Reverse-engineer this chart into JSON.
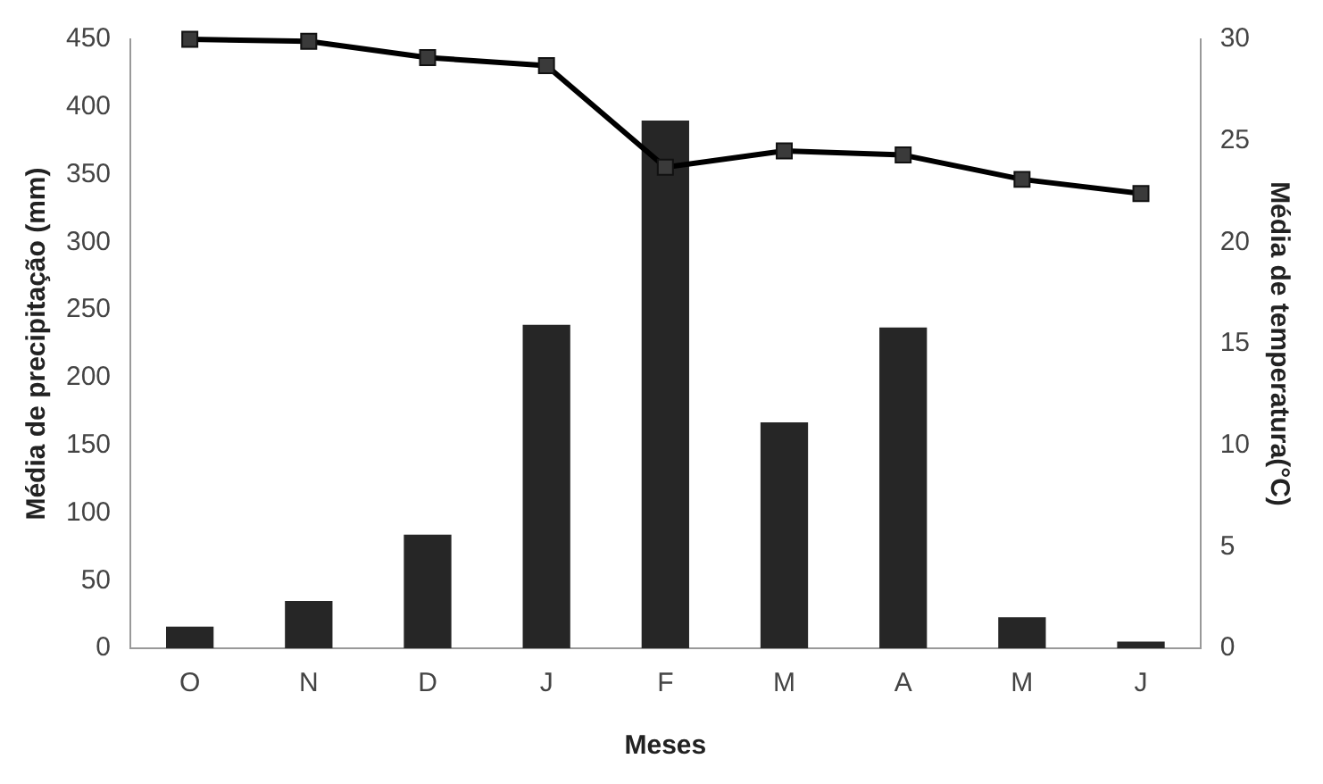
{
  "chart_data": {
    "type": "bar",
    "xlabel": "Meses",
    "ylabel": "Média de precipitação (mm)",
    "y2label": "Média de temperatura(°C)",
    "categories": [
      "O",
      "N",
      "D",
      "J",
      "F",
      "M",
      "A",
      "M",
      "J"
    ],
    "series": [
      {
        "color": "#262626",
        "values": [
          16,
          35,
          84,
          239,
          390,
          167,
          237,
          23,
          5
        ]
      },
      {
        "type": "line",
        "axis": "y2",
        "color": "#000000",
        "marker": "square",
        "values": [
          30,
          29.9,
          29.1,
          28.7,
          23.7,
          24.5,
          24.3,
          23.1,
          22.4
        ]
      }
    ],
    "ylim": [
      0,
      450
    ],
    "yticks": [
      0,
      50,
      100,
      150,
      200,
      250,
      300,
      350,
      400,
      450
    ],
    "y2lim": [
      0,
      30
    ],
    "y2ticks": [
      0,
      5,
      10,
      15,
      20,
      25,
      30
    ],
    "grid": false,
    "legend": false
  }
}
